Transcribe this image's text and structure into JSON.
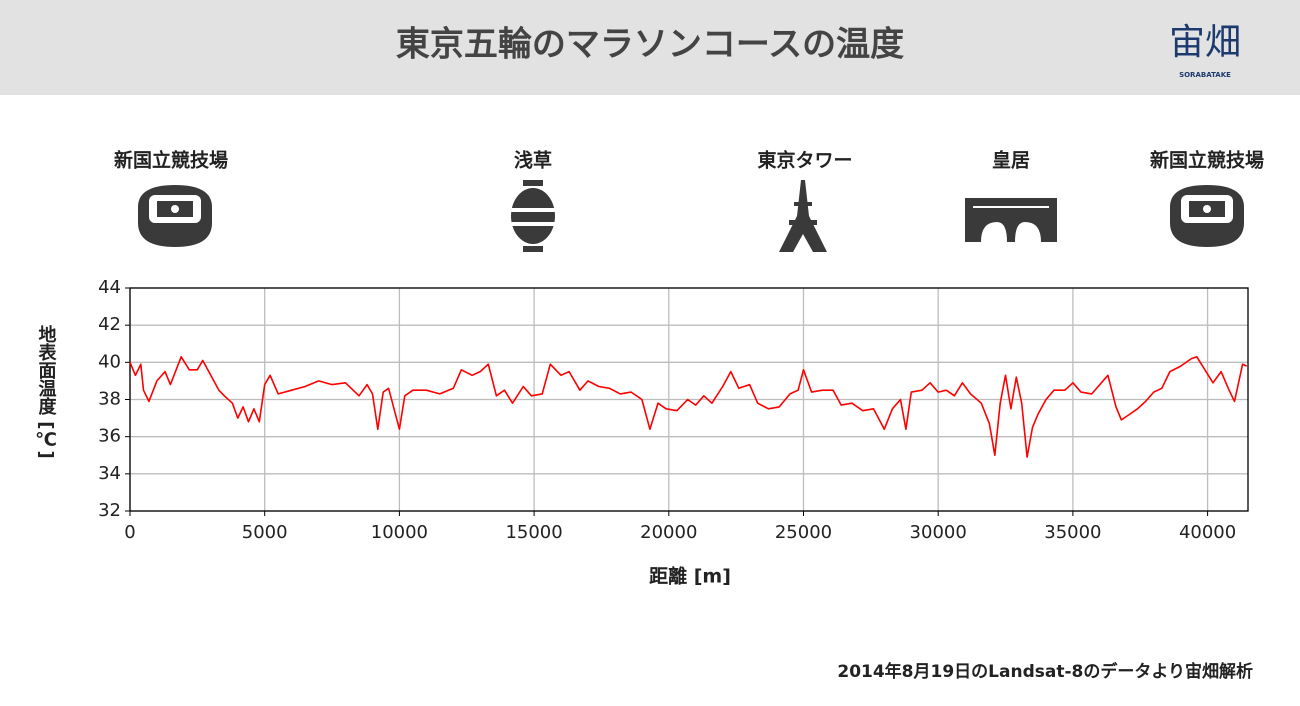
{
  "header": {
    "title": "東京五輪のマラソンコースの温度",
    "logo": "宙畑",
    "logo_sub": "SORABATAKE"
  },
  "landmarks": [
    "新国立競技場",
    "浅草",
    "東京タワー",
    "皇居",
    "新国立競技場"
  ],
  "note": "2014年8月19日のLandsat-8のデータより宙畑解析",
  "chart_data": {
    "type": "line",
    "x_label": "距離 [m]",
    "y_label": "地表面温度 [℃]",
    "x": [
      0,
      200,
      400,
      500,
      700,
      1000,
      1300,
      1500,
      1900,
      2200,
      2500,
      2700,
      3000,
      3300,
      3500,
      3800,
      4000,
      4200,
      4400,
      4600,
      4800,
      5000,
      5200,
      5500,
      6000,
      6500,
      7000,
      7500,
      8000,
      8500,
      8800,
      9000,
      9200,
      9400,
      9600,
      9800,
      10000,
      10200,
      10500,
      11000,
      11500,
      12000,
      12300,
      12700,
      13000,
      13300,
      13600,
      13900,
      14200,
      14600,
      14900,
      15300,
      15600,
      16000,
      16300,
      16700,
      17000,
      17400,
      17800,
      18200,
      18600,
      19000,
      19300,
      19600,
      19900,
      20300,
      20700,
      21000,
      21300,
      21600,
      22000,
      22300,
      22600,
      23000,
      23300,
      23700,
      24100,
      24500,
      24800,
      25000,
      25300,
      25700,
      26100,
      26400,
      26800,
      27200,
      27600,
      28000,
      28300,
      28600,
      28800,
      29000,
      29400,
      29700,
      30000,
      30300,
      30600,
      30900,
      31200,
      31600,
      31900,
      32100,
      32300,
      32500,
      32700,
      32900,
      33100,
      33300,
      33500,
      33700,
      34000,
      34300,
      34700,
      35000,
      35300,
      35700,
      36000,
      36300,
      36600,
      36800,
      37100,
      37400,
      37700,
      38000,
      38300,
      38600,
      39000,
      39400,
      39600,
      39900,
      40200,
      40500,
      40800,
      41000,
      41300,
      41450
    ],
    "series": [
      {
        "name": "温度",
        "color": "#ff0000",
        "values": [
          40,
          39.3,
          39.9,
          38.5,
          37.9,
          39,
          39.5,
          38.8,
          40.3,
          39.6,
          39.6,
          40.1,
          39.3,
          38.5,
          38.2,
          37.8,
          37,
          37.6,
          36.8,
          37.5,
          36.8,
          38.8,
          39.3,
          38.3,
          38.5,
          38.7,
          39,
          38.8,
          38.9,
          38.2,
          38.8,
          38.3,
          36.4,
          38.4,
          38.6,
          37.5,
          36.4,
          38.2,
          38.5,
          38.5,
          38.3,
          38.6,
          39.6,
          39.3,
          39.5,
          39.9,
          38.2,
          38.5,
          37.8,
          38.7,
          38.2,
          38.3,
          39.9,
          39.3,
          39.5,
          38.5,
          39,
          38.7,
          38.6,
          38.3,
          38.4,
          38,
          36.4,
          37.8,
          37.5,
          37.4,
          38,
          37.7,
          38.2,
          37.8,
          38.7,
          39.5,
          38.6,
          38.8,
          37.8,
          37.5,
          37.6,
          38.3,
          38.5,
          39.6,
          38.4,
          38.5,
          38.5,
          37.7,
          37.8,
          37.4,
          37.5,
          36.4,
          37.5,
          38,
          36.4,
          38.4,
          38.5,
          38.9,
          38.4,
          38.5,
          38.2,
          38.9,
          38.3,
          37.8,
          36.7,
          35,
          37.8,
          39.3,
          37.5,
          39.2,
          37.8,
          34.9,
          36.5,
          37.2,
          38,
          38.5,
          38.5,
          38.9,
          38.4,
          38.3,
          38.8,
          39.3,
          37.6,
          36.9,
          37.2,
          37.5,
          37.9,
          38.4,
          38.6,
          39.5,
          39.8,
          40.2,
          40.3,
          39.6,
          38.9,
          39.5,
          38.5,
          37.9,
          39.9,
          39.8
        ]
      }
    ],
    "xlim": [
      0,
      41500
    ],
    "ylim": [
      32,
      44
    ],
    "xticks": [
      0,
      5000,
      10000,
      15000,
      20000,
      25000,
      30000,
      35000,
      40000
    ],
    "yticks": [
      32,
      34,
      36,
      38,
      40,
      42,
      44
    ],
    "grid": true
  }
}
